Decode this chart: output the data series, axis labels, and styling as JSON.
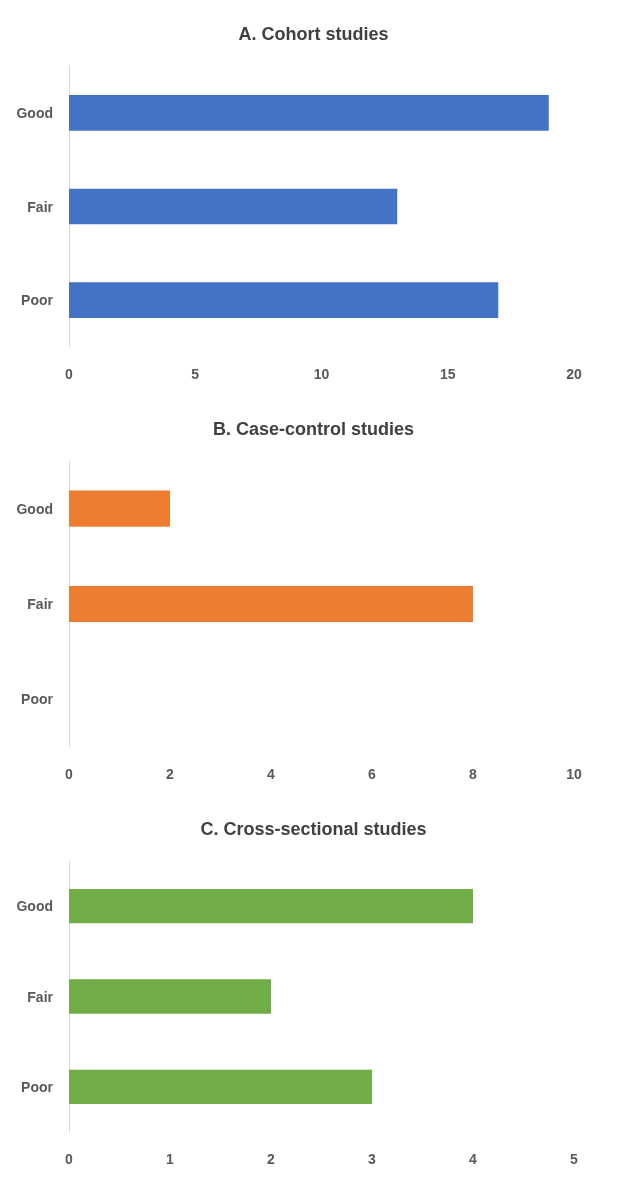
{
  "chart_data": [
    {
      "type": "bar",
      "orientation": "horizontal",
      "title": "A. Cohort studies",
      "categories": [
        "Good",
        "Fair",
        "Poor"
      ],
      "values": [
        19,
        13,
        17
      ],
      "color": "#4472c4",
      "xlim": [
        0,
        20
      ],
      "xticks": [
        0,
        5,
        10,
        15,
        20
      ],
      "grid": false
    },
    {
      "type": "bar",
      "orientation": "horizontal",
      "title": "B. Case-control studies",
      "categories": [
        "Good",
        "Fair",
        "Poor"
      ],
      "values": [
        2,
        8,
        0
      ],
      "color": "#ed7d31",
      "xlim": [
        0,
        10
      ],
      "xticks": [
        0,
        2,
        4,
        6,
        8,
        10
      ],
      "grid": false
    },
    {
      "type": "bar",
      "orientation": "horizontal",
      "title": "C. Cross-sectional studies",
      "categories": [
        "Good",
        "Fair",
        "Poor"
      ],
      "values": [
        4,
        2,
        3
      ],
      "color": "#70ad47",
      "xlim": [
        0,
        5
      ],
      "xticks": [
        0,
        1,
        2,
        3,
        4,
        5
      ],
      "grid": false
    }
  ]
}
